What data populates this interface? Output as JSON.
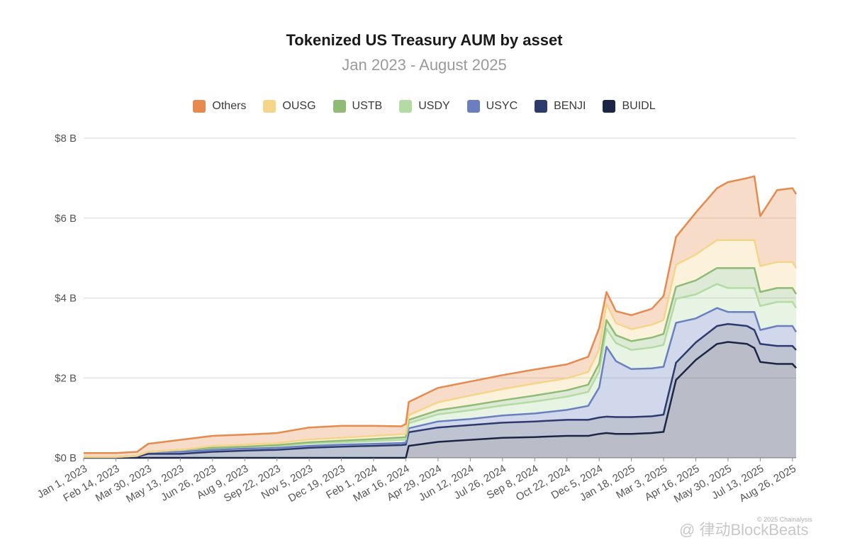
{
  "chart_data": {
    "type": "area",
    "stacked": true,
    "title": "Tokenized US Treasury AUM by asset",
    "subtitle": "Jan 2023 - August 2025",
    "y_tick_labels": [
      "$0 B",
      "$2 B",
      "$4 B",
      "$6 B",
      "$8 B"
    ],
    "y_tick_values": [
      0,
      2,
      4,
      6,
      8
    ],
    "ylim": [
      0,
      8
    ],
    "y_unit": "billion USD",
    "x_tick_labels": [
      "Jan 1, 2023",
      "Feb 14, 2023",
      "Mar 30, 2023",
      "May 13, 2023",
      "Jun 26, 2023",
      "Aug 9, 2023",
      "Sep 22, 2023",
      "Nov 5, 2023",
      "Dec 19, 2023",
      "Feb 1, 2024",
      "Mar 16, 2024",
      "Apr 29, 2024",
      "Jun 12, 2024",
      "Jul 26, 2024",
      "Sep 8, 2024",
      "Oct 22, 2024",
      "Dec 5, 2024",
      "Jan 18, 2025",
      "Mar 3, 2025",
      "Apr 16, 2025",
      "May 30, 2025",
      "Jul 13, 2025",
      "Aug 26, 2025"
    ],
    "grid": true,
    "legend_position": "top",
    "x": [
      "2023-01-01",
      "2023-02-14",
      "2023-03-15",
      "2023-03-30",
      "2023-05-13",
      "2023-06-26",
      "2023-08-09",
      "2023-09-22",
      "2023-11-05",
      "2023-12-19",
      "2024-02-01",
      "2024-03-10",
      "2024-03-16",
      "2024-03-20",
      "2024-04-29",
      "2024-06-12",
      "2024-07-26",
      "2024-09-08",
      "2024-10-22",
      "2024-11-20",
      "2024-12-05",
      "2024-12-15",
      "2024-12-28",
      "2025-01-18",
      "2025-02-15",
      "2025-03-03",
      "2025-03-20",
      "2025-04-16",
      "2025-05-15",
      "2025-05-30",
      "2025-06-25",
      "2025-07-05",
      "2025-07-13",
      "2025-08-05",
      "2025-08-26",
      "2025-08-31"
    ],
    "series": [
      {
        "name": "BUIDL",
        "color": "#1b2545",
        "values": [
          0,
          0,
          0,
          0,
          0,
          0,
          0,
          0,
          0,
          0,
          0,
          0,
          0,
          0.3,
          0.4,
          0.45,
          0.5,
          0.52,
          0.55,
          0.55,
          0.6,
          0.62,
          0.6,
          0.6,
          0.62,
          0.65,
          1.95,
          2.45,
          2.85,
          2.9,
          2.85,
          2.75,
          2.4,
          2.35,
          2.35,
          2.25
        ]
      },
      {
        "name": "BENJI",
        "color": "#2c3a6e",
        "values": [
          0.02,
          0.02,
          0.03,
          0.1,
          0.1,
          0.15,
          0.18,
          0.2,
          0.25,
          0.28,
          0.3,
          0.32,
          0.33,
          0.34,
          0.36,
          0.37,
          0.38,
          0.39,
          0.4,
          0.4,
          0.41,
          0.41,
          0.42,
          0.42,
          0.42,
          0.43,
          0.43,
          0.44,
          0.45,
          0.45,
          0.45,
          0.45,
          0.45,
          0.45,
          0.45,
          0.45
        ]
      },
      {
        "name": "USYC",
        "color": "#6b7fc0",
        "values": [
          0,
          0,
          0.02,
          0.05,
          0.05,
          0.05,
          0.05,
          0.05,
          0.05,
          0.05,
          0.05,
          0.05,
          0.05,
          0.1,
          0.15,
          0.15,
          0.18,
          0.2,
          0.25,
          0.35,
          0.75,
          1.75,
          1.4,
          1.2,
          1.2,
          1.2,
          1.0,
          0.6,
          0.45,
          0.3,
          0.35,
          0.45,
          0.35,
          0.5,
          0.5,
          0.45
        ]
      },
      {
        "name": "USDY",
        "color": "#b4dba3",
        "values": [
          0,
          0,
          0,
          0,
          0.05,
          0.05,
          0.05,
          0.05,
          0.06,
          0.06,
          0.07,
          0.08,
          0.08,
          0.13,
          0.18,
          0.22,
          0.25,
          0.3,
          0.33,
          0.35,
          0.4,
          0.45,
          0.45,
          0.48,
          0.52,
          0.55,
          0.6,
          0.6,
          0.6,
          0.6,
          0.6,
          0.6,
          0.6,
          0.6,
          0.6,
          0.6
        ]
      },
      {
        "name": "USTB",
        "color": "#8fbb76",
        "values": [
          0,
          0,
          0,
          0,
          0,
          0,
          0,
          0.02,
          0.03,
          0.04,
          0.05,
          0.06,
          0.06,
          0.08,
          0.1,
          0.12,
          0.13,
          0.15,
          0.16,
          0.18,
          0.2,
          0.22,
          0.2,
          0.22,
          0.25,
          0.27,
          0.3,
          0.35,
          0.4,
          0.5,
          0.5,
          0.5,
          0.35,
          0.35,
          0.35,
          0.35
        ]
      },
      {
        "name": "OUSG",
        "color": "#f6d48a",
        "values": [
          0,
          0,
          0,
          0,
          0,
          0.05,
          0.05,
          0.05,
          0.07,
          0.07,
          0.08,
          0.08,
          0.08,
          0.12,
          0.2,
          0.25,
          0.28,
          0.3,
          0.3,
          0.32,
          0.35,
          0.4,
          0.3,
          0.3,
          0.32,
          0.35,
          0.55,
          0.65,
          0.7,
          0.7,
          0.7,
          0.7,
          0.65,
          0.65,
          0.65,
          0.65
        ]
      },
      {
        "name": "Others",
        "color": "#e68a4e",
        "values": [
          0.1,
          0.1,
          0.1,
          0.2,
          0.25,
          0.25,
          0.25,
          0.25,
          0.3,
          0.3,
          0.25,
          0.2,
          0.25,
          0.33,
          0.36,
          0.35,
          0.35,
          0.35,
          0.35,
          0.38,
          0.54,
          0.3,
          0.3,
          0.35,
          0.4,
          0.6,
          0.7,
          1.05,
          1.3,
          1.45,
          1.55,
          1.6,
          1.25,
          1.8,
          1.85,
          1.85
        ]
      }
    ]
  },
  "legend": {
    "order": [
      "Others",
      "OUSG",
      "USTB",
      "USDY",
      "USYC",
      "BENJI",
      "BUIDL"
    ]
  },
  "watermark": {
    "copyright": "© 2025 Chainalysis",
    "brand": "@ 律动BlockBeats"
  }
}
